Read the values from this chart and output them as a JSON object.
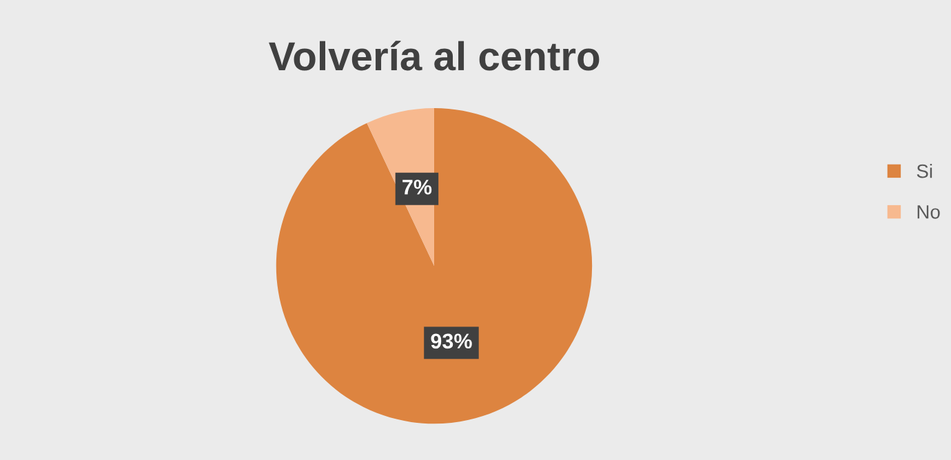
{
  "chart_data": {
    "type": "pie",
    "title": "Volvería al centro",
    "categories": [
      "Si",
      "No"
    ],
    "values": [
      93,
      7
    ],
    "colors": [
      "#dd8440",
      "#f7b98f"
    ],
    "value_labels": [
      "93%",
      "7%"
    ],
    "legend": "right"
  }
}
